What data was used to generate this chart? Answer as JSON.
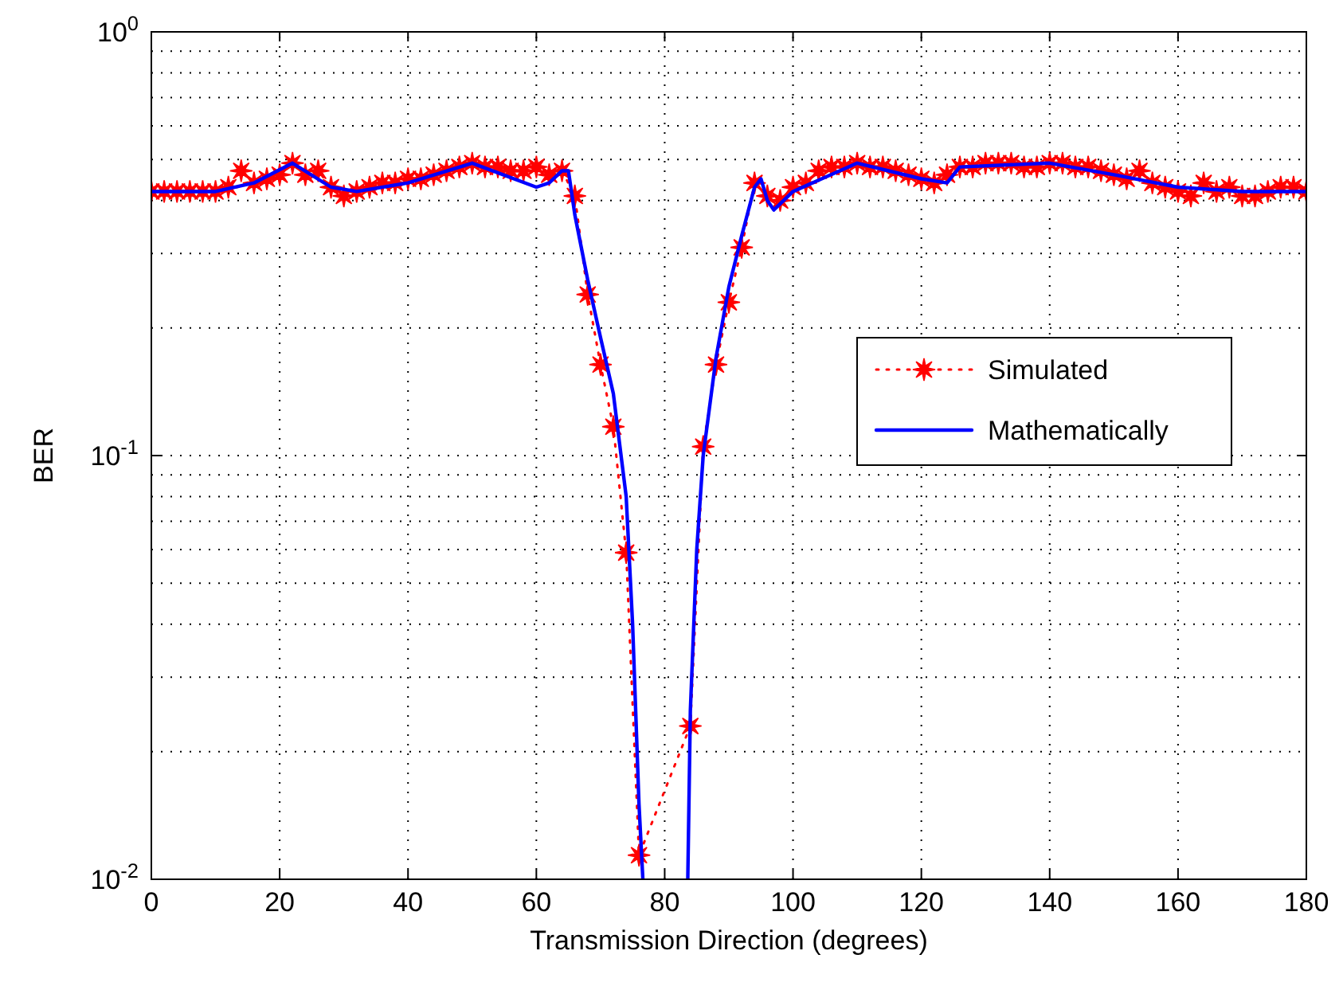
{
  "chart_data": {
    "type": "line",
    "xlabel": "Transmission Direction (degrees)",
    "ylabel": "BER",
    "log": "y",
    "xlim": [
      0,
      180
    ],
    "xticks": [
      0,
      20,
      40,
      60,
      80,
      100,
      120,
      140,
      160,
      180
    ],
    "ylim": [
      0.01,
      1
    ],
    "yticks": [
      {
        "value": 0.01,
        "label": "10$^{-2}$"
      },
      {
        "value": 0.1,
        "label": "10$^{-1}$"
      },
      {
        "value": 1,
        "label": "10$^{0}$"
      }
    ],
    "grid": true,
    "legend": "right",
    "series": [
      {
        "name": "Simulated",
        "color": "#ff0000",
        "marker": "star",
        "line_style": "dotted",
        "x": [
          0,
          2,
          4,
          6,
          8,
          10,
          12,
          14,
          16,
          18,
          20,
          22,
          24,
          26,
          28,
          30,
          32,
          34,
          36,
          38,
          40,
          42,
          44,
          46,
          48,
          50,
          52,
          54,
          56,
          58,
          60,
          62,
          64,
          66,
          68,
          70,
          72,
          74,
          76,
          84,
          86,
          88,
          90,
          92,
          94,
          96,
          98,
          100,
          102,
          104,
          106,
          108,
          110,
          112,
          114,
          116,
          118,
          120,
          122,
          124,
          126,
          128,
          130,
          132,
          134,
          136,
          138,
          140,
          142,
          144,
          146,
          148,
          150,
          152,
          154,
          156,
          158,
          160,
          162,
          164,
          166,
          168,
          170,
          172,
          174,
          176,
          178,
          180
        ],
        "values": [
          0.42,
          0.42,
          0.42,
          0.42,
          0.42,
          0.42,
          0.43,
          0.47,
          0.44,
          0.45,
          0.46,
          0.49,
          0.46,
          0.47,
          0.43,
          0.41,
          0.42,
          0.43,
          0.44,
          0.44,
          0.45,
          0.45,
          0.46,
          0.47,
          0.48,
          0.49,
          0.48,
          0.48,
          0.47,
          0.47,
          0.48,
          0.46,
          0.47,
          0.41,
          0.24,
          0.164,
          0.117,
          0.059,
          0.0114,
          0.023,
          0.105,
          0.164,
          0.23,
          0.31,
          0.44,
          0.41,
          0.4,
          0.43,
          0.44,
          0.47,
          0.48,
          0.48,
          0.49,
          0.48,
          0.48,
          0.47,
          0.46,
          0.45,
          0.44,
          0.46,
          0.48,
          0.48,
          0.49,
          0.49,
          0.49,
          0.48,
          0.48,
          0.49,
          0.49,
          0.48,
          0.48,
          0.47,
          0.46,
          0.45,
          0.47,
          0.44,
          0.43,
          0.42,
          0.41,
          0.44,
          0.42,
          0.43,
          0.41,
          0.41,
          0.42,
          0.43,
          0.43,
          0.42
        ]
      },
      {
        "name": "Mathematically",
        "color": "#0000ff",
        "marker": "none",
        "line_style": "solid",
        "x": [
          0,
          10,
          16,
          22,
          28,
          32,
          40,
          50,
          60,
          62,
          64,
          65,
          66,
          68,
          70,
          72,
          74,
          75,
          76,
          76.6,
          80,
          83.6,
          84,
          85,
          86,
          88,
          90,
          92,
          94,
          95,
          96,
          97,
          100,
          110,
          120,
          124,
          126,
          140,
          150,
          160,
          170,
          180
        ],
        "values": [
          0.42,
          0.42,
          0.44,
          0.49,
          0.43,
          0.42,
          0.44,
          0.49,
          0.43,
          0.44,
          0.47,
          0.47,
          0.37,
          0.26,
          0.19,
          0.14,
          0.08,
          0.04,
          0.015,
          0.01,
          null,
          0.01,
          0.025,
          0.06,
          0.1,
          0.17,
          0.25,
          0.33,
          0.43,
          0.45,
          0.4,
          0.38,
          0.42,
          0.49,
          0.45,
          0.44,
          0.48,
          0.49,
          0.46,
          0.43,
          0.42,
          0.42
        ]
      }
    ]
  }
}
